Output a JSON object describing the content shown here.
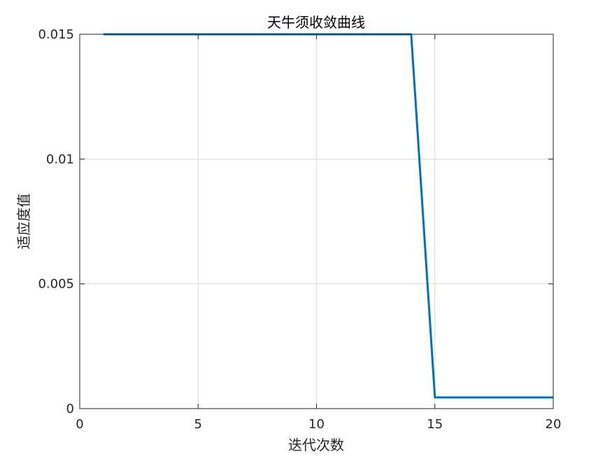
{
  "chart_data": {
    "type": "line",
    "title": "天牛须收敛曲线",
    "xlabel": "迭代次数",
    "ylabel": "适应度值",
    "xlim": [
      0,
      20
    ],
    "ylim": [
      0,
      0.015
    ],
    "xticks": [
      0,
      5,
      10,
      15,
      20
    ],
    "xtick_labels": [
      "0",
      "5",
      "10",
      "15",
      "20"
    ],
    "yticks": [
      0,
      0.005,
      0.01,
      0.015
    ],
    "ytick_labels": [
      "0",
      "0.005",
      "0.01",
      "0.015"
    ],
    "grid": true,
    "series": [
      {
        "color": "#0072BD",
        "x": [
          1,
          2,
          3,
          4,
          5,
          6,
          7,
          8,
          9,
          10,
          11,
          12,
          13,
          14,
          15,
          16,
          17,
          18,
          19,
          20
        ],
        "y": [
          0.015,
          0.015,
          0.015,
          0.015,
          0.015,
          0.015,
          0.015,
          0.015,
          0.015,
          0.015,
          0.015,
          0.015,
          0.015,
          0.015,
          0.00045,
          0.00045,
          0.00045,
          0.00045,
          0.00045,
          0.00045
        ]
      }
    ]
  }
}
